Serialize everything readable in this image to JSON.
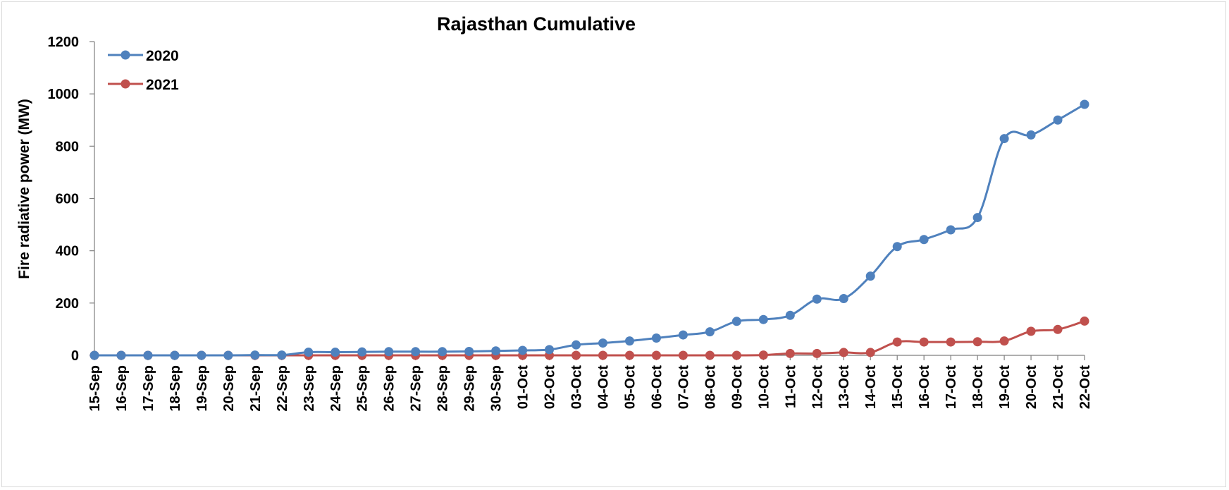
{
  "chart_data": {
    "type": "line",
    "title": "Rajasthan Cumulative",
    "xlabel": "",
    "ylabel": "Fire radiative power (MW)",
    "ylim": [
      0,
      1200
    ],
    "yticks": [
      0,
      200,
      400,
      600,
      800,
      1000,
      1200
    ],
    "grid": false,
    "legend_position": "top-left",
    "categories": [
      "15-Sep",
      "16-Sep",
      "17-Sep",
      "18-Sep",
      "19-Sep",
      "20-Sep",
      "21-Sep",
      "22-Sep",
      "23-Sep",
      "24-Sep",
      "25-Sep",
      "26-Sep",
      "27-Sep",
      "28-Sep",
      "29-Sep",
      "30-Sep",
      "01-Oct",
      "02-Oct",
      "03-Oct",
      "04-Oct",
      "05-Oct",
      "06-Oct",
      "07-Oct",
      "08-Oct",
      "09-Oct",
      "10-Oct",
      "11-Oct",
      "12-Oct",
      "13-Oct",
      "14-Oct",
      "15-Oct",
      "16-Oct",
      "17-Oct",
      "18-Oct",
      "19-Oct",
      "20-Oct",
      "21-Oct",
      "22-Oct"
    ],
    "series": [
      {
        "name": "2020",
        "color": "#4f81bd",
        "values": [
          0,
          0,
          0,
          0,
          0,
          0,
          1,
          1,
          12,
          12,
          13,
          14,
          14,
          14,
          15,
          17,
          19,
          22,
          40,
          47,
          55,
          66,
          78,
          90,
          130,
          137,
          153,
          215,
          217,
          303,
          416,
          443,
          480,
          527,
          829,
          843,
          900,
          960
        ]
      },
      {
        "name": "2021",
        "color": "#c0504d",
        "values": [
          0,
          0,
          0,
          0,
          0,
          0,
          0,
          0,
          0,
          0,
          0,
          0,
          0,
          0,
          0,
          0,
          0,
          0,
          0,
          0,
          0,
          0,
          0,
          0,
          0,
          1,
          7,
          7,
          11,
          11,
          51,
          51,
          51,
          52,
          55,
          92,
          99,
          131
        ]
      }
    ]
  }
}
